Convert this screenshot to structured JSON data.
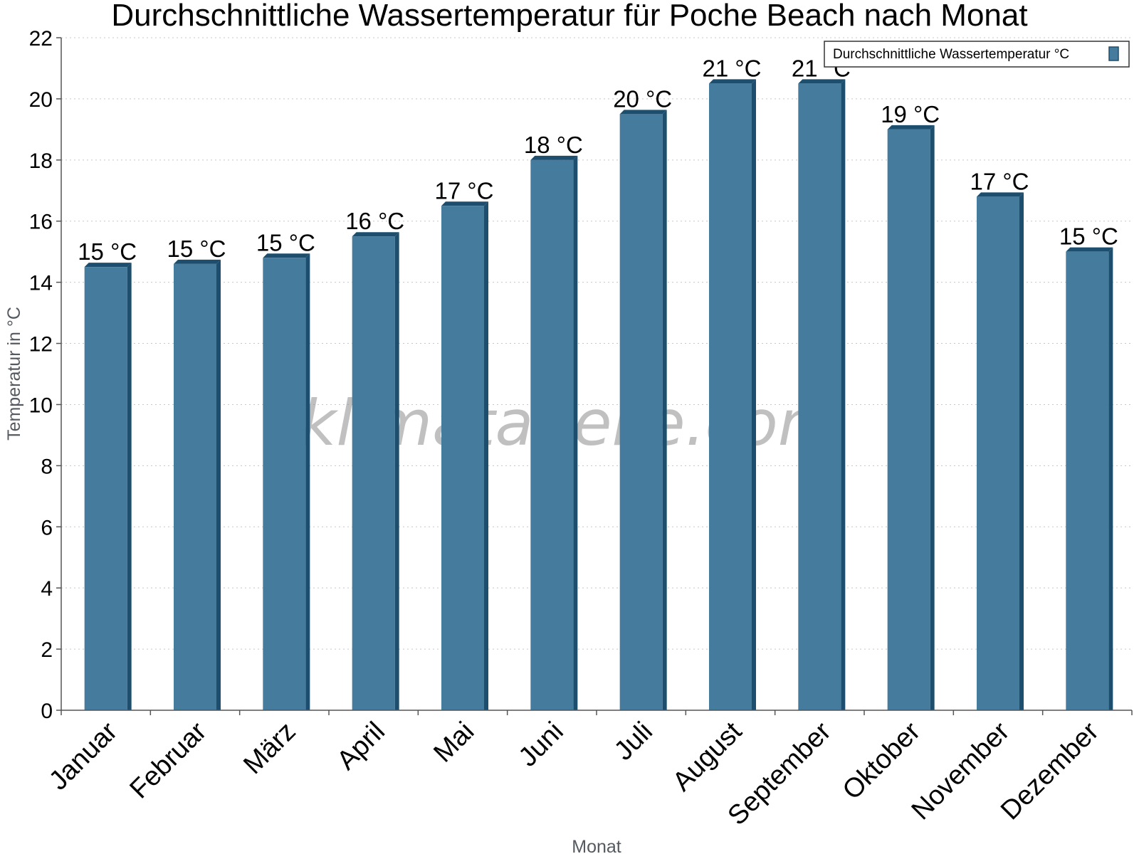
{
  "chart_data": {
    "type": "bar",
    "title": "Durchschnittliche Wassertemperatur für Poche Beach nach Monat",
    "xlabel": "Monat",
    "ylabel": "Temperatur in °C",
    "categories": [
      "Januar",
      "Februar",
      "März",
      "April",
      "Mai",
      "Juni",
      "Juli",
      "August",
      "September",
      "Oktober",
      "November",
      "Dezember"
    ],
    "series": [
      {
        "name": "Durchschnittliche Wassertemperatur °C",
        "values": [
          14.5,
          14.6,
          14.8,
          15.5,
          16.5,
          18.0,
          19.5,
          20.5,
          20.5,
          19.0,
          16.8,
          15.0
        ],
        "labels": [
          "15 °C",
          "15 °C",
          "15 °C",
          "16 °C",
          "17 °C",
          "18 °C",
          "20 °C",
          "21 °C",
          "21 °C",
          "19 °C",
          "17 °C",
          "15 °C"
        ]
      }
    ],
    "ylim": [
      0,
      22
    ],
    "yticks": [
      0,
      2,
      4,
      6,
      8,
      10,
      12,
      14,
      16,
      18,
      20,
      22
    ],
    "grid": true,
    "legend_position": "top-right",
    "colors": {
      "bar": "#457b9d",
      "bar_side": "#1d4e6e",
      "grid": "#c8c8c8",
      "axis": "#555555"
    }
  },
  "watermark": "klimatabelle.com"
}
